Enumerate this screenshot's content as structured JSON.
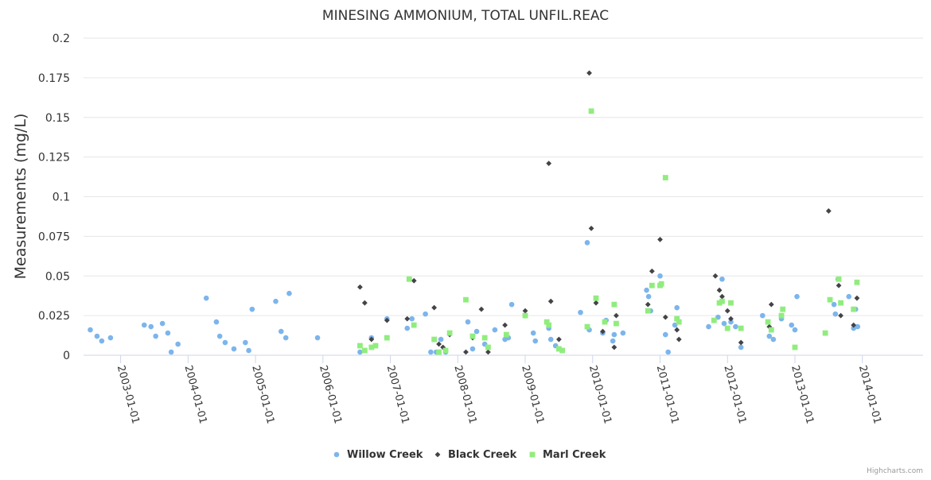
{
  "chart_data": {
    "type": "scatter",
    "title": "MINESING AMMONIUM, TOTAL UNFIL.REAC",
    "ylabel": "Measurements (mg/L)",
    "xlabel": "",
    "ylim": [
      0,
      0.2
    ],
    "yticks": [
      0,
      0.025,
      0.05,
      0.075,
      0.1,
      0.125,
      0.15,
      0.175,
      0.2
    ],
    "ytick_labels": [
      "0",
      "0.025",
      "0.05",
      "0.075",
      "0.1",
      "0.125",
      "0.15",
      "0.175",
      "0.2"
    ],
    "xlim": [
      2002.45,
      2014.9
    ],
    "xticks": [
      2003,
      2004,
      2005,
      2006,
      2007,
      2008,
      2009,
      2010,
      2011,
      2012,
      2013,
      2014
    ],
    "xtick_labels": [
      "2003-01-01",
      "2004-01-01",
      "2005-01-01",
      "2006-01-01",
      "2007-01-01",
      "2008-01-01",
      "2009-01-01",
      "2010-01-01",
      "2011-01-01",
      "2012-01-01",
      "2013-01-01",
      "2014-01-01"
    ],
    "grid": "horizontal",
    "legend_position": "bottom-center",
    "credits": "Highcharts.com",
    "series": [
      {
        "name": "Willow Creek",
        "color": "#7cb5ec",
        "marker": "circle",
        "points": [
          [
            2002.55,
            0.016
          ],
          [
            2002.65,
            0.012
          ],
          [
            2002.72,
            0.009
          ],
          [
            2002.85,
            0.011
          ],
          [
            2003.35,
            0.019
          ],
          [
            2003.45,
            0.018
          ],
          [
            2003.52,
            0.012
          ],
          [
            2003.62,
            0.02
          ],
          [
            2003.7,
            0.014
          ],
          [
            2003.75,
            0.002
          ],
          [
            2003.85,
            0.007
          ],
          [
            2004.27,
            0.036
          ],
          [
            2004.42,
            0.021
          ],
          [
            2004.47,
            0.012
          ],
          [
            2004.55,
            0.008
          ],
          [
            2004.68,
            0.004
          ],
          [
            2004.85,
            0.008
          ],
          [
            2004.9,
            0.003
          ],
          [
            2004.95,
            0.029
          ],
          [
            2005.3,
            0.034
          ],
          [
            2005.38,
            0.015
          ],
          [
            2005.45,
            0.011
          ],
          [
            2005.5,
            0.039
          ],
          [
            2005.92,
            0.011
          ],
          [
            2006.55,
            0.002
          ],
          [
            2006.72,
            0.011
          ],
          [
            2006.78,
            0.006
          ],
          [
            2006.95,
            0.023
          ],
          [
            2007.25,
            0.017
          ],
          [
            2007.32,
            0.023
          ],
          [
            2007.52,
            0.026
          ],
          [
            2007.6,
            0.002
          ],
          [
            2007.68,
            0.002
          ],
          [
            2007.75,
            0.01
          ],
          [
            2007.82,
            0.002
          ],
          [
            2008.15,
            0.021
          ],
          [
            2008.22,
            0.004
          ],
          [
            2008.28,
            0.015
          ],
          [
            2008.4,
            0.007
          ],
          [
            2008.55,
            0.016
          ],
          [
            2008.7,
            0.01
          ],
          [
            2008.75,
            0.011
          ],
          [
            2008.8,
            0.032
          ],
          [
            2009.12,
            0.014
          ],
          [
            2009.15,
            0.009
          ],
          [
            2009.35,
            0.017
          ],
          [
            2009.38,
            0.01
          ],
          [
            2009.45,
            0.006
          ],
          [
            2009.82,
            0.027
          ],
          [
            2009.92,
            0.071
          ],
          [
            2009.95,
            0.016
          ],
          [
            2010.15,
            0.014
          ],
          [
            2010.2,
            0.022
          ],
          [
            2010.3,
            0.009
          ],
          [
            2010.32,
            0.013
          ],
          [
            2010.45,
            0.014
          ],
          [
            2010.8,
            0.041
          ],
          [
            2010.83,
            0.037
          ],
          [
            2010.86,
            0.028
          ],
          [
            2011.0,
            0.05
          ],
          [
            2011.08,
            0.013
          ],
          [
            2011.12,
            0.002
          ],
          [
            2011.22,
            0.019
          ],
          [
            2011.25,
            0.03
          ],
          [
            2011.72,
            0.018
          ],
          [
            2011.8,
            0.022
          ],
          [
            2011.86,
            0.024
          ],
          [
            2011.92,
            0.048
          ],
          [
            2011.95,
            0.02
          ],
          [
            2012.05,
            0.021
          ],
          [
            2012.12,
            0.018
          ],
          [
            2012.2,
            0.005
          ],
          [
            2012.52,
            0.025
          ],
          [
            2012.62,
            0.012
          ],
          [
            2012.68,
            0.01
          ],
          [
            2012.8,
            0.023
          ],
          [
            2012.95,
            0.019
          ],
          [
            2013.0,
            0.016
          ],
          [
            2013.03,
            0.037
          ],
          [
            2013.58,
            0.032
          ],
          [
            2013.6,
            0.026
          ],
          [
            2013.64,
            0.048
          ],
          [
            2013.8,
            0.037
          ],
          [
            2013.87,
            0.017
          ],
          [
            2013.9,
            0.029
          ],
          [
            2013.93,
            0.018
          ]
        ]
      },
      {
        "name": "Black Creek",
        "color": "#434348",
        "marker": "diamond",
        "points": [
          [
            2006.55,
            0.043
          ],
          [
            2006.62,
            0.033
          ],
          [
            2006.72,
            0.01
          ],
          [
            2006.95,
            0.022
          ],
          [
            2007.25,
            0.023
          ],
          [
            2007.35,
            0.047
          ],
          [
            2007.65,
            0.03
          ],
          [
            2007.72,
            0.007
          ],
          [
            2007.78,
            0.005
          ],
          [
            2007.88,
            0.013
          ],
          [
            2008.12,
            0.002
          ],
          [
            2008.22,
            0.011
          ],
          [
            2008.35,
            0.029
          ],
          [
            2008.45,
            0.002
          ],
          [
            2008.7,
            0.019
          ],
          [
            2009.0,
            0.028
          ],
          [
            2009.35,
            0.121
          ],
          [
            2009.38,
            0.034
          ],
          [
            2009.5,
            0.01
          ],
          [
            2009.95,
            0.178
          ],
          [
            2009.98,
            0.08
          ],
          [
            2010.05,
            0.033
          ],
          [
            2010.15,
            0.015
          ],
          [
            2010.32,
            0.005
          ],
          [
            2010.35,
            0.025
          ],
          [
            2010.82,
            0.032
          ],
          [
            2010.88,
            0.053
          ],
          [
            2011.0,
            0.073
          ],
          [
            2011.08,
            0.024
          ],
          [
            2011.25,
            0.016
          ],
          [
            2011.28,
            0.01
          ],
          [
            2011.82,
            0.05
          ],
          [
            2011.88,
            0.041
          ],
          [
            2011.92,
            0.037
          ],
          [
            2012.0,
            0.028
          ],
          [
            2012.05,
            0.023
          ],
          [
            2012.2,
            0.008
          ],
          [
            2012.62,
            0.018
          ],
          [
            2012.65,
            0.032
          ],
          [
            2012.8,
            0.025
          ],
          [
            2013.5,
            0.091
          ],
          [
            2013.65,
            0.044
          ],
          [
            2013.68,
            0.025
          ],
          [
            2013.87,
            0.019
          ],
          [
            2013.92,
            0.036
          ]
        ]
      },
      {
        "name": "Marl Creek",
        "color": "#90ed7d",
        "marker": "square",
        "points": [
          [
            2006.55,
            0.006
          ],
          [
            2006.62,
            0.003
          ],
          [
            2006.72,
            0.005
          ],
          [
            2006.78,
            0.006
          ],
          [
            2006.95,
            0.011
          ],
          [
            2007.28,
            0.048
          ],
          [
            2007.35,
            0.019
          ],
          [
            2007.65,
            0.01
          ],
          [
            2007.72,
            0.002
          ],
          [
            2007.82,
            0.003
          ],
          [
            2007.88,
            0.014
          ],
          [
            2008.12,
            0.035
          ],
          [
            2008.22,
            0.012
          ],
          [
            2008.4,
            0.011
          ],
          [
            2008.45,
            0.005
          ],
          [
            2008.72,
            0.013
          ],
          [
            2009.0,
            0.025
          ],
          [
            2009.32,
            0.021
          ],
          [
            2009.35,
            0.019
          ],
          [
            2009.5,
            0.004
          ],
          [
            2009.55,
            0.003
          ],
          [
            2009.92,
            0.018
          ],
          [
            2009.98,
            0.154
          ],
          [
            2010.05,
            0.036
          ],
          [
            2010.18,
            0.021
          ],
          [
            2010.32,
            0.032
          ],
          [
            2010.35,
            0.02
          ],
          [
            2010.82,
            0.028
          ],
          [
            2010.88,
            0.044
          ],
          [
            2011.0,
            0.044
          ],
          [
            2011.02,
            0.045
          ],
          [
            2011.08,
            0.112
          ],
          [
            2011.25,
            0.023
          ],
          [
            2011.28,
            0.021
          ],
          [
            2011.8,
            0.022
          ],
          [
            2011.88,
            0.033
          ],
          [
            2011.92,
            0.034
          ],
          [
            2012.0,
            0.017
          ],
          [
            2012.05,
            0.033
          ],
          [
            2012.2,
            0.017
          ],
          [
            2012.6,
            0.021
          ],
          [
            2012.65,
            0.016
          ],
          [
            2012.8,
            0.025
          ],
          [
            2012.82,
            0.029
          ],
          [
            2013.0,
            0.005
          ],
          [
            2013.45,
            0.014
          ],
          [
            2013.52,
            0.035
          ],
          [
            2013.65,
            0.048
          ],
          [
            2013.68,
            0.033
          ],
          [
            2013.87,
            0.029
          ],
          [
            2013.92,
            0.046
          ]
        ]
      }
    ]
  }
}
